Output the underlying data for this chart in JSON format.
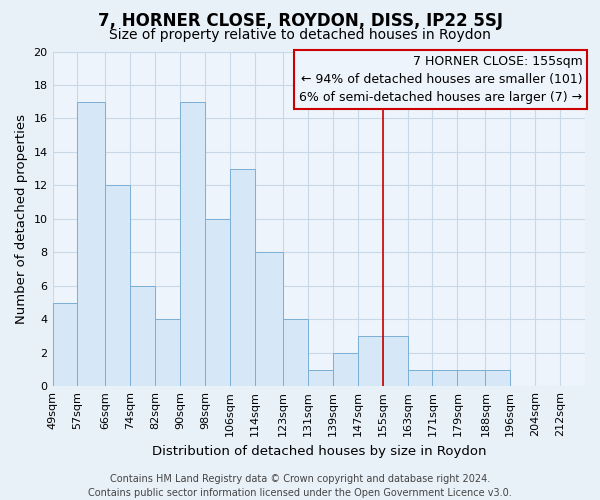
{
  "title": "7, HORNER CLOSE, ROYDON, DISS, IP22 5SJ",
  "subtitle": "Size of property relative to detached houses in Roydon",
  "xlabel": "Distribution of detached houses by size in Roydon",
  "ylabel": "Number of detached properties",
  "bar_labels": [
    "49sqm",
    "57sqm",
    "66sqm",
    "74sqm",
    "82sqm",
    "90sqm",
    "98sqm",
    "106sqm",
    "114sqm",
    "123sqm",
    "131sqm",
    "139sqm",
    "147sqm",
    "155sqm",
    "163sqm",
    "171sqm",
    "179sqm",
    "188sqm",
    "196sqm",
    "204sqm",
    "212sqm"
  ],
  "bar_heights": [
    5,
    17,
    12,
    6,
    4,
    17,
    10,
    13,
    8,
    4,
    1,
    2,
    3,
    3,
    1,
    1,
    1,
    1,
    0,
    0,
    0
  ],
  "bar_edges": [
    49,
    57,
    66,
    74,
    82,
    90,
    98,
    106,
    114,
    123,
    131,
    139,
    147,
    155,
    163,
    171,
    179,
    188,
    196,
    204,
    212
  ],
  "bar_color": "#d6e8f7",
  "bar_edge_color": "#7aafd4",
  "bar_linewidth": 0.7,
  "grid_color": "#c8d8e8",
  "background_color": "#e8f0f8",
  "plot_bg_color": "#eef4fb",
  "ylim": [
    0,
    20
  ],
  "yticks": [
    0,
    2,
    4,
    6,
    8,
    10,
    12,
    14,
    16,
    18,
    20
  ],
  "red_line_x": 155,
  "red_line_color": "#cc0000",
  "legend_title": "7 HORNER CLOSE: 155sqm",
  "legend_line1": "← 94% of detached houses are smaller (101)",
  "legend_line2": "6% of semi-detached houses are larger (7) →",
  "footer_line1": "Contains HM Land Registry data © Crown copyright and database right 2024.",
  "footer_line2": "Contains public sector information licensed under the Open Government Licence v3.0.",
  "title_fontsize": 12,
  "subtitle_fontsize": 10,
  "axis_label_fontsize": 9.5,
  "tick_fontsize": 8,
  "legend_fontsize": 9,
  "footer_fontsize": 7
}
